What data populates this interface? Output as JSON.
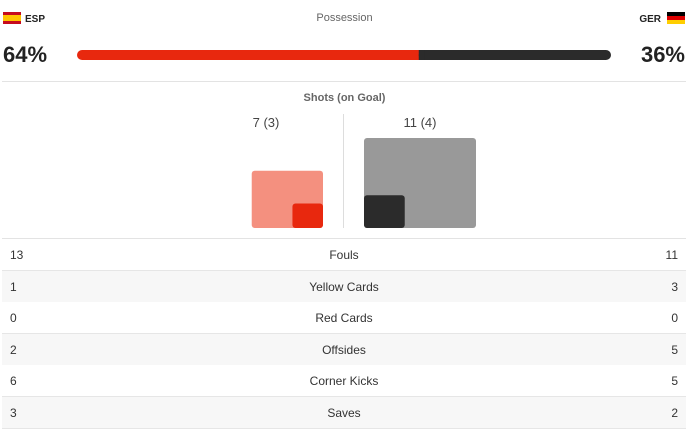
{
  "header": {
    "title": "Possession",
    "home": {
      "team": "ESP",
      "possession": {
        "value": 64,
        "label": "64%"
      }
    },
    "away": {
      "team": "GER",
      "possession": {
        "value": 36,
        "label": "36%"
      }
    }
  },
  "shots": {
    "title": "Shots (on Goal)",
    "home": {
      "label": "7 (3)",
      "total": 7,
      "on_goal": 3
    },
    "away": {
      "label": "11 (4)",
      "total": 11,
      "on_goal": 4
    }
  },
  "stats": {
    "rows": [
      {
        "home": 13,
        "label": "Fouls",
        "away": 11
      },
      {
        "home": 1,
        "label": "Yellow Cards",
        "away": 3
      },
      {
        "home": 0,
        "label": "Red Cards",
        "away": 0
      },
      {
        "home": 2,
        "label": "Offsides",
        "away": 5
      },
      {
        "home": 6,
        "label": "Corner Kicks",
        "away": 5
      },
      {
        "home": 3,
        "label": "Saves",
        "away": 2
      }
    ]
  }
}
